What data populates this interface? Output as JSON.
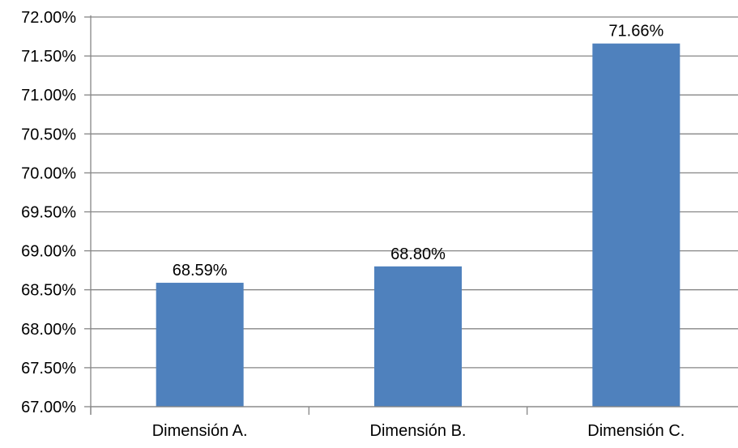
{
  "chart_data": {
    "type": "bar",
    "categories": [
      "Dimensión A.",
      "Dimensión B.",
      "Dimensión C."
    ],
    "values": [
      68.59,
      68.8,
      71.66
    ],
    "data_labels": [
      "68.59%",
      "68.80%",
      "71.66%"
    ],
    "ylim": [
      67.0,
      72.0
    ],
    "y_ticks": [
      67.0,
      67.5,
      68.0,
      68.5,
      69.0,
      69.5,
      70.0,
      70.5,
      71.0,
      71.5,
      72.0
    ],
    "y_tick_labels": [
      "67.00%",
      "67.50%",
      "68.00%",
      "68.50%",
      "69.00%",
      "69.50%",
      "70.00%",
      "70.50%",
      "71.00%",
      "71.50%",
      "72.00%"
    ],
    "grid": true,
    "legend": "none",
    "bar_color": "#4F81BD",
    "grid_color": "#868686",
    "axis_color": "#868686"
  }
}
